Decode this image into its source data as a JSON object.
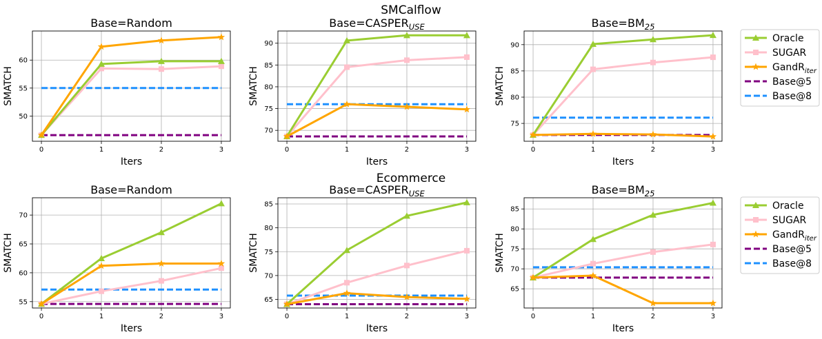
{
  "figure": {
    "row_titles": [
      "SMCalflow",
      "Ecommerce"
    ]
  },
  "legend": {
    "entries": [
      {
        "label": "Oracle",
        "color": "#9acd32",
        "style": "solid",
        "marker": "triangle"
      },
      {
        "label": "SUGAR",
        "color": "#ffc0cb",
        "style": "solid",
        "marker": "square"
      },
      {
        "label": "GandR",
        "label_sub": "iter",
        "color": "#ffa500",
        "style": "solid",
        "marker": "star"
      },
      {
        "label": "Base@5",
        "color": "#800080",
        "style": "dashed",
        "marker": "none"
      },
      {
        "label": "Base@8",
        "color": "#1e90ff",
        "style": "dashed",
        "marker": "none"
      }
    ]
  },
  "chart_data": [
    {
      "type": "line",
      "row": "SMCalflow",
      "title": "Base=Random",
      "title_sub": "",
      "xlabel": "Iters",
      "ylabel": "SMATCH",
      "x": [
        0,
        1,
        2,
        3
      ],
      "xticks": [
        "0",
        "1",
        "2",
        "3"
      ],
      "ylim": [
        45.5,
        65.2
      ],
      "yticks": [
        50,
        55,
        60
      ],
      "grid": true,
      "series": [
        {
          "name": "Oracle",
          "values": [
            46.6,
            59.3,
            59.8,
            59.8
          ]
        },
        {
          "name": "SUGAR",
          "values": [
            46.6,
            58.5,
            58.4,
            58.9
          ]
        },
        {
          "name": "GandR",
          "values": [
            46.6,
            62.4,
            63.5,
            64.1
          ]
        },
        {
          "name": "Base@5",
          "values": [
            46.6,
            46.6,
            46.6,
            46.6
          ]
        },
        {
          "name": "Base@8",
          "values": [
            55.0,
            55.0,
            55.0,
            55.0
          ]
        }
      ]
    },
    {
      "type": "line",
      "row": "SMCalflow",
      "title": "Base=CASPER",
      "title_sub": "USE",
      "xlabel": "Iters",
      "ylabel": "SMATCH",
      "x": [
        0,
        1,
        2,
        3
      ],
      "xticks": [
        "0",
        "1",
        "2",
        "3"
      ],
      "ylim": [
        67.5,
        92.8
      ],
      "yticks": [
        70,
        75,
        80,
        85,
        90
      ],
      "grid": true,
      "series": [
        {
          "name": "Oracle",
          "values": [
            68.6,
            90.6,
            91.8,
            91.8
          ]
        },
        {
          "name": "SUGAR",
          "values": [
            68.6,
            84.5,
            86.1,
            86.8
          ]
        },
        {
          "name": "GandR",
          "values": [
            68.6,
            76.0,
            75.4,
            74.8
          ]
        },
        {
          "name": "Base@5",
          "values": [
            68.6,
            68.6,
            68.6,
            68.6
          ]
        },
        {
          "name": "Base@8",
          "values": [
            76.0,
            76.0,
            76.0,
            76.0
          ]
        }
      ]
    },
    {
      "type": "line",
      "row": "SMCalflow",
      "title": "Base=BM",
      "title_sub": "25",
      "xlabel": "Iters",
      "ylabel": "SMATCH",
      "x": [
        0,
        1,
        2,
        3
      ],
      "xticks": [
        "0",
        "1",
        "2",
        "3"
      ],
      "ylim": [
        71.6,
        92.6
      ],
      "yticks": [
        75,
        80,
        85,
        90
      ],
      "grid": true,
      "series": [
        {
          "name": "Oracle",
          "values": [
            72.8,
            90.1,
            91.0,
            91.8
          ]
        },
        {
          "name": "SUGAR",
          "values": [
            72.8,
            85.3,
            86.6,
            87.6
          ]
        },
        {
          "name": "GandR",
          "values": [
            72.8,
            73.0,
            72.9,
            72.5
          ]
        },
        {
          "name": "Base@5",
          "values": [
            72.8,
            72.8,
            72.8,
            72.8
          ]
        },
        {
          "name": "Base@8",
          "values": [
            76.1,
            76.1,
            76.1,
            76.1
          ]
        }
      ]
    },
    {
      "type": "line",
      "row": "Ecommerce",
      "title": "Base=Random",
      "title_sub": "",
      "xlabel": "Iters",
      "ylabel": "SMATCH",
      "x": [
        0,
        1,
        2,
        3
      ],
      "xticks": [
        "0",
        "1",
        "2",
        "3"
      ],
      "ylim": [
        53.9,
        73.0
      ],
      "yticks": [
        55,
        60,
        65,
        70
      ],
      "grid": true,
      "series": [
        {
          "name": "Oracle",
          "values": [
            54.6,
            62.5,
            67.0,
            72.0
          ]
        },
        {
          "name": "SUGAR",
          "values": [
            54.6,
            56.8,
            58.6,
            60.8
          ]
        },
        {
          "name": "GandR",
          "values": [
            54.6,
            61.2,
            61.6,
            61.6
          ]
        },
        {
          "name": "Base@5",
          "values": [
            54.6,
            54.6,
            54.6,
            54.6
          ]
        },
        {
          "name": "Base@8",
          "values": [
            57.1,
            57.1,
            57.1,
            57.1
          ]
        }
      ]
    },
    {
      "type": "line",
      "row": "Ecommerce",
      "title": "Base=CASPER",
      "title_sub": "USE",
      "xlabel": "Iters",
      "ylabel": "SMATCH",
      "x": [
        0,
        1,
        2,
        3
      ],
      "xticks": [
        "0",
        "1",
        "2",
        "3"
      ],
      "ylim": [
        63.2,
        86.3
      ],
      "yticks": [
        65,
        70,
        75,
        80,
        85
      ],
      "grid": true,
      "series": [
        {
          "name": "Oracle",
          "values": [
            64.0,
            75.3,
            82.5,
            85.3
          ]
        },
        {
          "name": "SUGAR",
          "values": [
            64.0,
            68.5,
            72.1,
            75.2
          ]
        },
        {
          "name": "GandR",
          "values": [
            64.0,
            66.3,
            65.5,
            65.1
          ]
        },
        {
          "name": "Base@5",
          "values": [
            64.0,
            64.0,
            64.0,
            64.0
          ]
        },
        {
          "name": "Base@8",
          "values": [
            65.8,
            65.8,
            65.8,
            65.8
          ]
        }
      ]
    },
    {
      "type": "line",
      "row": "Ecommerce",
      "title": "Base=BM",
      "title_sub": "25",
      "xlabel": "Iters",
      "ylabel": "SMATCH",
      "x": [
        0,
        1,
        2,
        3
      ],
      "xticks": [
        "0",
        "1",
        "2",
        "3"
      ],
      "ylim": [
        60.2,
        87.8
      ],
      "yticks": [
        65,
        70,
        75,
        80,
        85
      ],
      "grid": true,
      "series": [
        {
          "name": "Oracle",
          "values": [
            67.8,
            77.4,
            83.5,
            86.5
          ]
        },
        {
          "name": "SUGAR",
          "values": [
            67.8,
            71.3,
            74.2,
            76.1
          ]
        },
        {
          "name": "GandR",
          "values": [
            67.8,
            68.3,
            61.4,
            61.4
          ]
        },
        {
          "name": "Base@5",
          "values": [
            67.8,
            67.8,
            67.8,
            67.8
          ]
        },
        {
          "name": "Base@8",
          "values": [
            70.4,
            70.4,
            70.4,
            70.4
          ]
        }
      ]
    }
  ]
}
